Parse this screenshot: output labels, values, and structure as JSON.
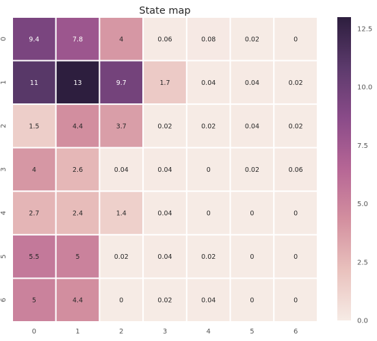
{
  "chart_data": {
    "type": "heatmap",
    "title": "State map",
    "xlabel": "",
    "ylabel": "",
    "x_categories": [
      "0",
      "1",
      "2",
      "3",
      "4",
      "5",
      "6"
    ],
    "y_categories": [
      "0",
      "1",
      "2",
      "3",
      "4",
      "5",
      "6"
    ],
    "values": [
      [
        9.4,
        7.8,
        4,
        0.06,
        0.08,
        0.02,
        0
      ],
      [
        11,
        13,
        9.7,
        1.7,
        0.04,
        0.04,
        0.02
      ],
      [
        1.5,
        4.4,
        3.7,
        0.02,
        0.02,
        0.04,
        0.02
      ],
      [
        4,
        2.6,
        0.04,
        0.04,
        0,
        0.02,
        0.06
      ],
      [
        2.7,
        2.4,
        1.4,
        0.04,
        0,
        0,
        0
      ],
      [
        5.5,
        5,
        0.02,
        0.04,
        0.02,
        0,
        0
      ],
      [
        5,
        4.4,
        0,
        0.02,
        0.04,
        0,
        0
      ]
    ],
    "colorbar": {
      "min": 0,
      "max": 13,
      "ticks": [
        0.0,
        2.5,
        5.0,
        7.5,
        10.0,
        12.5
      ],
      "tick_labels": [
        "0.0",
        "2.5",
        "5.0",
        "7.5",
        "10.0",
        "12.5"
      ]
    },
    "colormap": [
      "#f6ebe5",
      "#e9c1bd",
      "#d38f9f",
      "#b66695",
      "#8a4b89",
      "#5c3a6c",
      "#2d1e3e"
    ]
  }
}
